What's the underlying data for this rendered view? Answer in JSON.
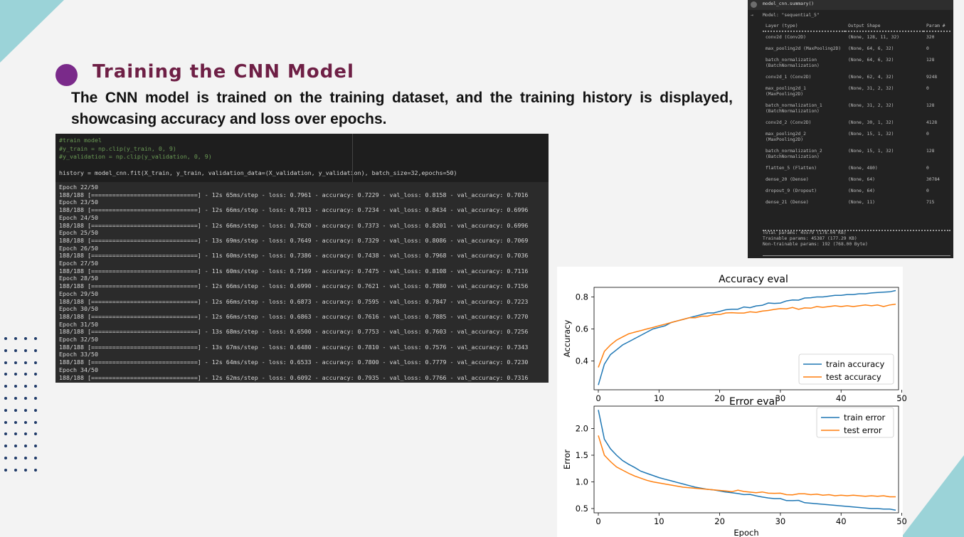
{
  "slide": {
    "title": "Training the CNN Model",
    "description": "The CNN model is trained on the training dataset, and the training history is displayed, showcasing accuracy and loss over epochs."
  },
  "notebook": {
    "code_lines": [
      "#train model",
      "#y_train = np.clip(y_train, 0, 9)",
      "#y_validation = np.clip(y_validation, 0, 9)",
      "history = model_cnn.fit(X_train, y_train, validation_data=(X_validation, y_validation), batch_size=32,epochs=50)"
    ],
    "output_lines": [
      "Epoch 22/50",
      "188/188 [==============================] - 12s 65ms/step - loss: 0.7961 - accuracy: 0.7229 - val_loss: 0.8158 - val_accuracy: 0.7016",
      "Epoch 23/50",
      "188/188 [==============================] - 12s 66ms/step - loss: 0.7813 - accuracy: 0.7234 - val_loss: 0.8434 - val_accuracy: 0.6996",
      "Epoch 24/50",
      "188/188 [==============================] - 12s 66ms/step - loss: 0.7620 - accuracy: 0.7373 - val_loss: 0.8201 - val_accuracy: 0.6996",
      "Epoch 25/50",
      "188/188 [==============================] - 13s 69ms/step - loss: 0.7649 - accuracy: 0.7329 - val_loss: 0.8086 - val_accuracy: 0.7069",
      "Epoch 26/50",
      "188/188 [==============================] - 11s 60ms/step - loss: 0.7386 - accuracy: 0.7438 - val_loss: 0.7968 - val_accuracy: 0.7036",
      "Epoch 27/50",
      "188/188 [==============================] - 11s 60ms/step - loss: 0.7169 - accuracy: 0.7475 - val_loss: 0.8108 - val_accuracy: 0.7116",
      "Epoch 28/50",
      "188/188 [==============================] - 12s 66ms/step - loss: 0.6990 - accuracy: 0.7621 - val_loss: 0.7880 - val_accuracy: 0.7156",
      "Epoch 29/50",
      "188/188 [==============================] - 12s 66ms/step - loss: 0.6873 - accuracy: 0.7595 - val_loss: 0.7847 - val_accuracy: 0.7223",
      "Epoch 30/50",
      "188/188 [==============================] - 12s 66ms/step - loss: 0.6863 - accuracy: 0.7616 - val_loss: 0.7885 - val_accuracy: 0.7270",
      "Epoch 31/50",
      "188/188 [==============================] - 13s 68ms/step - loss: 0.6500 - accuracy: 0.7753 - val_loss: 0.7603 - val_accuracy: 0.7256",
      "Epoch 32/50",
      "188/188 [==============================] - 13s 67ms/step - loss: 0.6480 - accuracy: 0.7810 - val_loss: 0.7576 - val_accuracy: 0.7343",
      "Epoch 33/50",
      "188/188 [==============================] - 12s 64ms/step - loss: 0.6533 - accuracy: 0.7800 - val_loss: 0.7779 - val_accuracy: 0.7230",
      "Epoch 34/50",
      "188/188 [==============================] - 12s 62ms/step - loss: 0.6092 - accuracy: 0.7935 - val_loss: 0.7766 - val_accuracy: 0.7316"
    ]
  },
  "summary": {
    "command": "model_cnn.summary()",
    "model_name": "Model: \"sequential_5\"",
    "headers": [
      "Layer (type)",
      "Output Shape",
      "Param #"
    ],
    "rows": [
      {
        "layer": "conv2d (Conv2D)",
        "shape": "(None, 128, 11, 32)",
        "params": "320"
      },
      {
        "layer": "max_pooling2d (MaxPooling2D)",
        "shape": "(None, 64, 6, 32)",
        "params": "0"
      },
      {
        "layer": "batch_normalization (BatchNormalization)",
        "shape": "(None, 64, 6, 32)",
        "params": "128"
      },
      {
        "layer": "conv2d_1 (Conv2D)",
        "shape": "(None, 62, 4, 32)",
        "params": "9248"
      },
      {
        "layer": "max_pooling2d_1 (MaxPooling2D)",
        "shape": "(None, 31, 2, 32)",
        "params": "0"
      },
      {
        "layer": "batch_normalization_1 (BatchNormalization)",
        "shape": "(None, 31, 2, 32)",
        "params": "128"
      },
      {
        "layer": "conv2d_2 (Conv2D)",
        "shape": "(None, 30, 1, 32)",
        "params": "4128"
      },
      {
        "layer": "max_pooling2d_2 (MaxPooling2D)",
        "shape": "(None, 15, 1, 32)",
        "params": "0"
      },
      {
        "layer": "batch_normalization_2 (BatchNormalization)",
        "shape": "(None, 15, 1, 32)",
        "params": "128"
      },
      {
        "layer": "flatten_5 (Flatten)",
        "shape": "(None, 480)",
        "params": "0"
      },
      {
        "layer": "dense_20 (Dense)",
        "shape": "(None, 64)",
        "params": "30784"
      },
      {
        "layer": "dropout_9 (Dropout)",
        "shape": "(None, 64)",
        "params": "0"
      },
      {
        "layer": "dense_21 (Dense)",
        "shape": "(None, 11)",
        "params": "715"
      }
    ],
    "totals": [
      "Total params: 45579 (178.04 KB)",
      "Trainable params: 45387 (177.29 KB)",
      "Non-trainable params: 192 (768.00 Byte)"
    ]
  },
  "chart_data": [
    {
      "type": "line",
      "title": "Accuracy eval",
      "xlabel": "",
      "ylabel": "Accuracy",
      "xlim": [
        0,
        49
      ],
      "ylim": [
        0.22,
        0.86
      ],
      "xticks": [
        0,
        10,
        20,
        30,
        40,
        50
      ],
      "yticks": [
        0.4,
        0.6,
        0.8
      ],
      "legend": "bottom-right",
      "series": [
        {
          "name": "train accuracy",
          "color": "#1f77b4",
          "values": [
            0.25,
            0.38,
            0.44,
            0.47,
            0.5,
            0.52,
            0.54,
            0.56,
            0.58,
            0.6,
            0.61,
            0.62,
            0.64,
            0.65,
            0.66,
            0.67,
            0.68,
            0.69,
            0.7,
            0.7,
            0.71,
            0.72,
            0.7229,
            0.7234,
            0.7373,
            0.7329,
            0.7438,
            0.7475,
            0.7621,
            0.7595,
            0.7616,
            0.7753,
            0.781,
            0.78,
            0.7935,
            0.795,
            0.8,
            0.8,
            0.805,
            0.81,
            0.81,
            0.815,
            0.815,
            0.82,
            0.82,
            0.825,
            0.828,
            0.83,
            0.832,
            0.84
          ]
        },
        {
          "name": "test accuracy",
          "color": "#ff7f0e",
          "values": [
            0.36,
            0.46,
            0.5,
            0.53,
            0.55,
            0.57,
            0.58,
            0.59,
            0.6,
            0.61,
            0.62,
            0.63,
            0.64,
            0.65,
            0.66,
            0.67,
            0.67,
            0.68,
            0.68,
            0.69,
            0.69,
            0.7,
            0.7016,
            0.6996,
            0.6996,
            0.7069,
            0.7036,
            0.7116,
            0.7156,
            0.7223,
            0.727,
            0.7256,
            0.7343,
            0.723,
            0.7316,
            0.73,
            0.74,
            0.735,
            0.74,
            0.745,
            0.74,
            0.745,
            0.74,
            0.745,
            0.75,
            0.745,
            0.75,
            0.74,
            0.75,
            0.755
          ]
        }
      ]
    },
    {
      "type": "line",
      "title": "Error eval",
      "xlabel": "Epoch",
      "ylabel": "Error",
      "xlim": [
        0,
        49
      ],
      "ylim": [
        0.42,
        2.42
      ],
      "xticks": [
        0,
        10,
        20,
        30,
        40,
        50
      ],
      "yticks": [
        0.5,
        1.0,
        1.5,
        2.0
      ],
      "legend": "top-right",
      "series": [
        {
          "name": "train error",
          "color": "#1f77b4",
          "values": [
            2.35,
            1.8,
            1.62,
            1.5,
            1.4,
            1.33,
            1.27,
            1.2,
            1.16,
            1.12,
            1.08,
            1.05,
            1.02,
            0.99,
            0.96,
            0.93,
            0.9,
            0.88,
            0.86,
            0.85,
            0.83,
            0.81,
            0.7961,
            0.7813,
            0.762,
            0.7649,
            0.7386,
            0.7169,
            0.699,
            0.6873,
            0.6863,
            0.65,
            0.648,
            0.6533,
            0.6092,
            0.6,
            0.59,
            0.58,
            0.57,
            0.56,
            0.55,
            0.54,
            0.53,
            0.52,
            0.51,
            0.5,
            0.5,
            0.49,
            0.49,
            0.47
          ]
        },
        {
          "name": "test error",
          "color": "#ff7f0e",
          "values": [
            1.87,
            1.5,
            1.38,
            1.28,
            1.22,
            1.16,
            1.11,
            1.07,
            1.03,
            1.0,
            0.98,
            0.96,
            0.94,
            0.92,
            0.9,
            0.89,
            0.88,
            0.87,
            0.86,
            0.85,
            0.84,
            0.83,
            0.8158,
            0.8434,
            0.8201,
            0.8086,
            0.7968,
            0.8108,
            0.788,
            0.7847,
            0.7885,
            0.7603,
            0.7576,
            0.7779,
            0.7766,
            0.76,
            0.77,
            0.75,
            0.76,
            0.74,
            0.75,
            0.74,
            0.75,
            0.74,
            0.73,
            0.74,
            0.73,
            0.74,
            0.72,
            0.72
          ]
        }
      ]
    }
  ]
}
